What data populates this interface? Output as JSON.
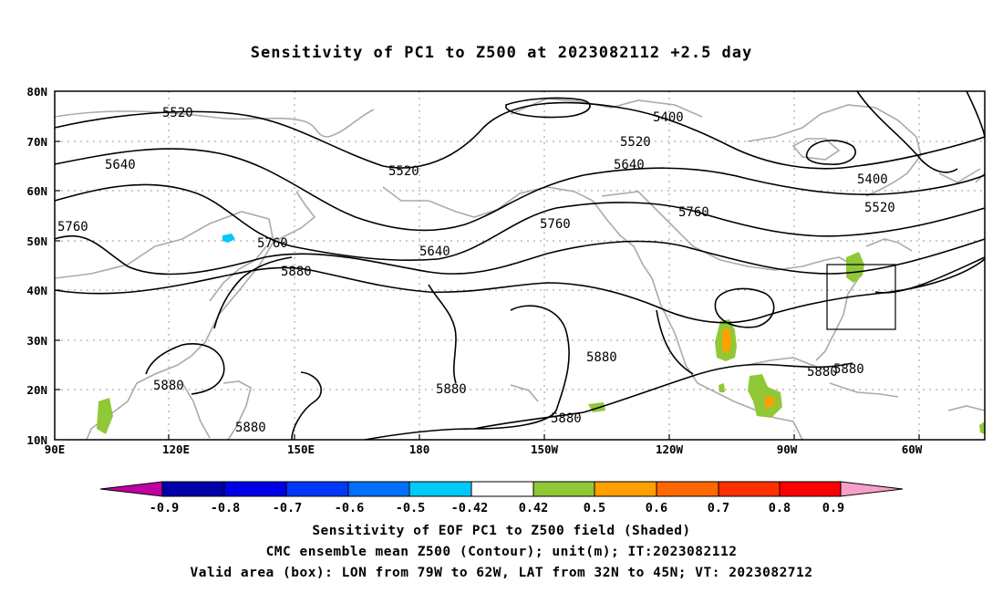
{
  "title": "Sensitivity of PC1 to Z500 at 2023082112 +2.5 day",
  "axes": {
    "lon_ticks": [
      "90E",
      "120E",
      "150E",
      "180",
      "150W",
      "120W",
      "90W",
      "60W"
    ],
    "lat_ticks": [
      "80N",
      "70N",
      "60N",
      "50N",
      "40N",
      "30N",
      "20N",
      "10N"
    ]
  },
  "contour_labels": [
    "5520",
    "5400",
    "5520",
    "5640",
    "5520",
    "5640",
    "5400",
    "5520",
    "5760",
    "5760",
    "5760",
    "5640",
    "5760",
    "5880",
    "5880",
    "5880",
    "5880",
    "5880",
    "5880",
    "5880",
    "5880"
  ],
  "colorbar": {
    "labels": [
      "-0.9",
      "-0.8",
      "-0.7",
      "-0.6",
      "-0.5",
      "-0.42",
      "0.42",
      "0.5",
      "0.6",
      "0.7",
      "0.8",
      "0.9"
    ],
    "colors": [
      "#c000a0",
      "#0000a8",
      "#0000e8",
      "#0038f8",
      "#0070f8",
      "#00c8f8",
      "#ffffff",
      "#90c838",
      "#ffa000",
      "#ff6800",
      "#ff3000",
      "#ff0000",
      "#f8a0c8"
    ]
  },
  "captions": {
    "line1": "Sensitivity of EOF PC1 to Z500 field (Shaded)",
    "line2": "CMC ensemble mean Z500 (Contour); unit(m); IT:2023082112",
    "line3": "Valid area (box): LON from 79W to 62W, LAT from 32N to 45N; VT: 2023082712"
  }
}
